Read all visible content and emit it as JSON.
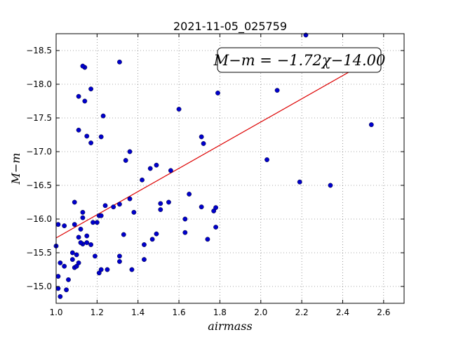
{
  "chart_data": {
    "type": "scatter",
    "title": "2021-11-05_025759",
    "xlabel": "airmass",
    "ylabel": "M−m",
    "xlim": [
      1.0,
      2.7
    ],
    "ylim": [
      -18.75,
      -14.75
    ],
    "y_inverted": true,
    "grid": true,
    "x_ticks": [
      "1.0",
      "1.2",
      "1.4",
      "1.6",
      "1.8",
      "2.0",
      "2.2",
      "2.4",
      "2.6"
    ],
    "y_ticks": [
      "−15.0",
      "−15.5",
      "−16.0",
      "−16.5",
      "−17.0",
      "−17.5",
      "−18.0",
      "−18.5"
    ],
    "annotation": "M−m = −1.72χ−14.00",
    "colors": {
      "points": "#0000cc",
      "fit": "#dd0000"
    },
    "fit": {
      "slope": -1.72,
      "intercept": -14.0,
      "x_range": [
        1.0,
        2.54
      ]
    },
    "points": [
      [
        1.01,
        -14.97
      ],
      [
        1.02,
        -14.85
      ],
      [
        1.05,
        -14.95
      ],
      [
        1.01,
        -15.15
      ],
      [
        1.06,
        -15.1
      ],
      [
        1.02,
        -15.35
      ],
      [
        1.04,
        -15.3
      ],
      [
        1.0,
        -15.6
      ],
      [
        1.09,
        -15.28
      ],
      [
        1.1,
        -15.3
      ],
      [
        1.08,
        -15.4
      ],
      [
        1.11,
        -15.35
      ],
      [
        1.1,
        -15.47
      ],
      [
        1.08,
        -15.5
      ],
      [
        1.13,
        -15.63
      ],
      [
        1.12,
        -15.65
      ],
      [
        1.15,
        -15.65
      ],
      [
        1.17,
        -15.62
      ],
      [
        1.11,
        -15.73
      ],
      [
        1.15,
        -15.75
      ],
      [
        1.01,
        -15.92
      ],
      [
        1.04,
        -15.9
      ],
      [
        1.09,
        -15.92
      ],
      [
        1.12,
        -15.85
      ],
      [
        1.18,
        -15.95
      ],
      [
        1.2,
        -15.95
      ],
      [
        1.21,
        -15.2
      ],
      [
        1.22,
        -15.25
      ],
      [
        1.25,
        -15.25
      ],
      [
        1.19,
        -15.45
      ],
      [
        1.13,
        -16.02
      ],
      [
        1.13,
        -16.1
      ],
      [
        1.09,
        -16.25
      ],
      [
        1.21,
        -16.05
      ],
      [
        1.22,
        -16.05
      ],
      [
        1.24,
        -16.2
      ],
      [
        1.28,
        -16.18
      ],
      [
        1.31,
        -16.22
      ],
      [
        1.31,
        -15.37
      ],
      [
        1.31,
        -15.45
      ],
      [
        1.33,
        -15.77
      ],
      [
        1.36,
        -16.3
      ],
      [
        1.37,
        -15.25
      ],
      [
        1.38,
        -16.1
      ],
      [
        1.43,
        -15.4
      ],
      [
        1.43,
        -15.62
      ],
      [
        1.47,
        -15.7
      ],
      [
        1.49,
        -15.78
      ],
      [
        1.51,
        -16.14
      ],
      [
        1.51,
        -16.23
      ],
      [
        1.55,
        -16.25
      ],
      [
        1.42,
        -16.58
      ],
      [
        1.46,
        -16.75
      ],
      [
        1.49,
        -16.8
      ],
      [
        1.56,
        -16.72
      ],
      [
        1.34,
        -16.87
      ],
      [
        1.36,
        -17.0
      ],
      [
        1.63,
        -15.8
      ],
      [
        1.63,
        -16.0
      ],
      [
        1.65,
        -16.37
      ],
      [
        1.71,
        -16.18
      ],
      [
        1.74,
        -15.7
      ],
      [
        1.77,
        -16.12
      ],
      [
        1.78,
        -16.17
      ],
      [
        1.78,
        -15.88
      ],
      [
        1.72,
        -17.12
      ],
      [
        1.71,
        -17.22
      ],
      [
        1.6,
        -17.63
      ],
      [
        1.79,
        -17.87
      ],
      [
        1.17,
        -17.13
      ],
      [
        1.22,
        -17.22
      ],
      [
        1.15,
        -17.23
      ],
      [
        1.11,
        -17.32
      ],
      [
        1.23,
        -17.53
      ],
      [
        1.14,
        -17.75
      ],
      [
        1.11,
        -17.82
      ],
      [
        1.17,
        -17.93
      ],
      [
        1.14,
        -18.25
      ],
      [
        1.13,
        -18.27
      ],
      [
        1.31,
        -18.33
      ],
      [
        2.03,
        -16.88
      ],
      [
        2.08,
        -17.91
      ],
      [
        2.19,
        -16.55
      ],
      [
        2.34,
        -16.5
      ],
      [
        2.54,
        -17.4
      ],
      [
        2.22,
        -18.73
      ]
    ]
  }
}
